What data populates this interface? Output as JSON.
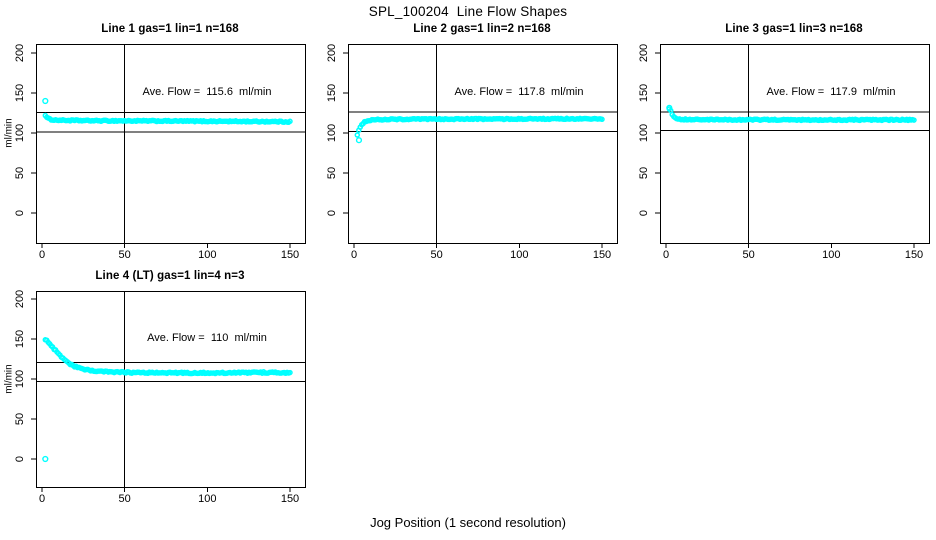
{
  "figure": {
    "title": "SPL_100204  Line Flow Shapes",
    "xlabel": "Jog Position (1 second resolution)",
    "ylabel": "ml/min",
    "background_color": "#ffffff",
    "marker_color": "#00ffff",
    "axis_color": "#000000"
  },
  "axes": {
    "x_ticks": [
      0,
      50,
      100,
      150
    ],
    "y_ticks": [
      0,
      50,
      100,
      150,
      200
    ],
    "x_range": [
      0,
      150
    ],
    "y_range": [
      0,
      200
    ]
  },
  "chart_data": [
    {
      "type": "scatter",
      "title": "Line 1 gas=1 lin=1 n=168",
      "line": 1,
      "gas": 1,
      "lin": 1,
      "n": 168,
      "ave_flow": 115.6,
      "annotation": "Ave. Flow =  115.6  ml/min",
      "ref_lines": {
        "h_upper": 125.5,
        "h_lower": 101,
        "v": 50
      },
      "profile": [
        [
          2,
          122.5
        ],
        [
          3,
          119
        ],
        [
          5,
          117
        ],
        [
          8,
          116.2
        ],
        [
          15,
          115.8
        ],
        [
          30,
          115.4
        ],
        [
          60,
          115.1
        ],
        [
          90,
          114.8
        ],
        [
          120,
          114.5
        ],
        [
          150,
          114.1
        ]
      ],
      "noise": 0.7,
      "outliers": [
        [
          2,
          140
        ]
      ]
    },
    {
      "type": "scatter",
      "title": "Line 2 gas=1 lin=2 n=168",
      "line": 2,
      "gas": 1,
      "lin": 2,
      "n": 168,
      "ave_flow": 117.8,
      "annotation": "Ave. Flow =  117.8  ml/min",
      "ref_lines": {
        "h_upper": 126,
        "h_lower": 102,
        "v": 50
      },
      "profile": [
        [
          2,
          98
        ],
        [
          3,
          104
        ],
        [
          4,
          109
        ],
        [
          6,
          113.5
        ],
        [
          9,
          115.8
        ],
        [
          14,
          116.8
        ],
        [
          25,
          117.2
        ],
        [
          50,
          117.4
        ],
        [
          100,
          117.6
        ],
        [
          150,
          117.7
        ]
      ],
      "noise": 0.7,
      "outliers": [
        [
          3,
          91
        ]
      ]
    },
    {
      "type": "scatter",
      "title": "Line 3 gas=1 lin=3 n=168",
      "line": 3,
      "gas": 1,
      "lin": 3,
      "n": 168,
      "ave_flow": 117.9,
      "annotation": "Ave. Flow =  117.9  ml/min",
      "ref_lines": {
        "h_upper": 126,
        "h_lower": 103,
        "v": 50
      },
      "profile": [
        [
          2,
          130.5
        ],
        [
          3,
          127
        ],
        [
          4,
          122
        ],
        [
          6,
          118.5
        ],
        [
          9,
          117.2
        ],
        [
          15,
          116.8
        ],
        [
          30,
          116.6
        ],
        [
          60,
          116.5
        ],
        [
          100,
          116.4
        ],
        [
          150,
          116.4
        ]
      ],
      "noise": 0.7,
      "outliers": [
        [
          2,
          131.5
        ]
      ]
    },
    {
      "type": "scatter",
      "title": "Line 4 (LT) gas=1 lin=4 n=3",
      "line": 4,
      "gas": 1,
      "lin": 4,
      "n": 3,
      "ave_flow": 110,
      "annotation": "Ave. Flow =  110  ml/min",
      "ref_lines": {
        "h_upper": 120.5,
        "h_lower": 97,
        "v": 50
      },
      "profile": [
        [
          2,
          149
        ],
        [
          3,
          147.5
        ],
        [
          5,
          143
        ],
        [
          8,
          136
        ],
        [
          12,
          127
        ],
        [
          16,
          120
        ],
        [
          20,
          115.5
        ],
        [
          25,
          112
        ],
        [
          30,
          110.3
        ],
        [
          40,
          108.8
        ],
        [
          55,
          108.1
        ],
        [
          75,
          107.8
        ],
        [
          100,
          107.7
        ],
        [
          125,
          107.9
        ],
        [
          140,
          108.3
        ],
        [
          150,
          107.5
        ]
      ],
      "noise": 0.9,
      "outliers": [
        [
          2,
          0
        ]
      ]
    }
  ]
}
